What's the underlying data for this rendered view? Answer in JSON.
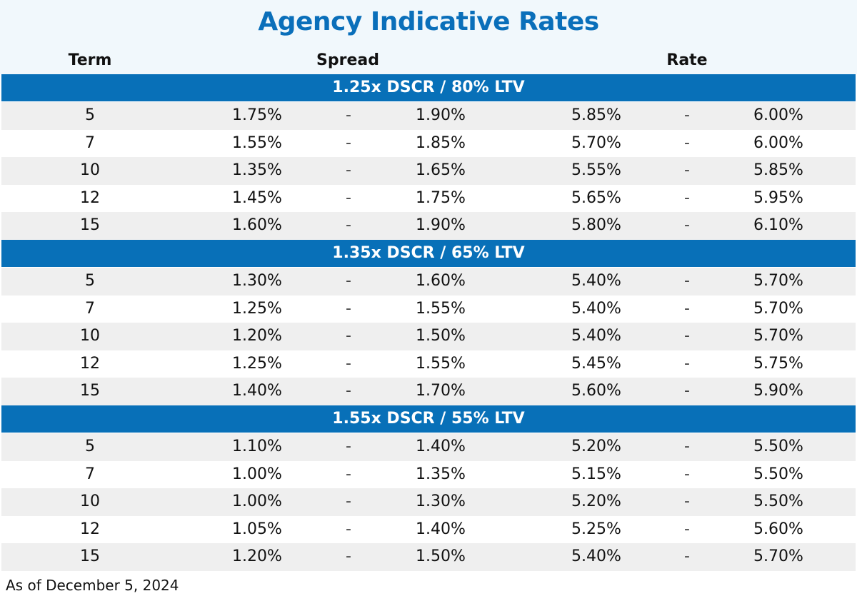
{
  "title": "Agency Indicative Rates",
  "columns": {
    "term": "Term",
    "spread": "Spread",
    "rate": "Rate"
  },
  "separator": "-",
  "groups": [
    {
      "label": "1.25x DSCR / 80% LTV",
      "rows": [
        {
          "term": "5",
          "spread_low": "1.75%",
          "spread_high": "1.90%",
          "rate_low": "5.85%",
          "rate_high": "6.00%"
        },
        {
          "term": "7",
          "spread_low": "1.55%",
          "spread_high": "1.85%",
          "rate_low": "5.70%",
          "rate_high": "6.00%"
        },
        {
          "term": "10",
          "spread_low": "1.35%",
          "spread_high": "1.65%",
          "rate_low": "5.55%",
          "rate_high": "5.85%"
        },
        {
          "term": "12",
          "spread_low": "1.45%",
          "spread_high": "1.75%",
          "rate_low": "5.65%",
          "rate_high": "5.95%"
        },
        {
          "term": "15",
          "spread_low": "1.60%",
          "spread_high": "1.90%",
          "rate_low": "5.80%",
          "rate_high": "6.10%"
        }
      ]
    },
    {
      "label": "1.35x DSCR / 65% LTV",
      "rows": [
        {
          "term": "5",
          "spread_low": "1.30%",
          "spread_high": "1.60%",
          "rate_low": "5.40%",
          "rate_high": "5.70%"
        },
        {
          "term": "7",
          "spread_low": "1.25%",
          "spread_high": "1.55%",
          "rate_low": "5.40%",
          "rate_high": "5.70%"
        },
        {
          "term": "10",
          "spread_low": "1.20%",
          "spread_high": "1.50%",
          "rate_low": "5.40%",
          "rate_high": "5.70%"
        },
        {
          "term": "12",
          "spread_low": "1.25%",
          "spread_high": "1.55%",
          "rate_low": "5.45%",
          "rate_high": "5.75%"
        },
        {
          "term": "15",
          "spread_low": "1.40%",
          "spread_high": "1.70%",
          "rate_low": "5.60%",
          "rate_high": "5.90%"
        }
      ]
    },
    {
      "label": "1.55x DSCR / 55% LTV",
      "rows": [
        {
          "term": "5",
          "spread_low": "1.10%",
          "spread_high": "1.40%",
          "rate_low": "5.20%",
          "rate_high": "5.50%"
        },
        {
          "term": "7",
          "spread_low": "1.00%",
          "spread_high": "1.35%",
          "rate_low": "5.15%",
          "rate_high": "5.50%"
        },
        {
          "term": "10",
          "spread_low": "1.00%",
          "spread_high": "1.30%",
          "rate_low": "5.20%",
          "rate_high": "5.50%"
        },
        {
          "term": "12",
          "spread_low": "1.05%",
          "spread_high": "1.40%",
          "rate_low": "5.25%",
          "rate_high": "5.60%"
        },
        {
          "term": "15",
          "spread_low": "1.20%",
          "spread_high": "1.50%",
          "rate_low": "5.40%",
          "rate_high": "5.70%"
        }
      ]
    }
  ],
  "footer": "As of December 5, 2024",
  "colors": {
    "title": "#0a6fba",
    "band": "#0870b8",
    "header_bg": "#f1f8fc",
    "alt_row": "#efefef"
  }
}
